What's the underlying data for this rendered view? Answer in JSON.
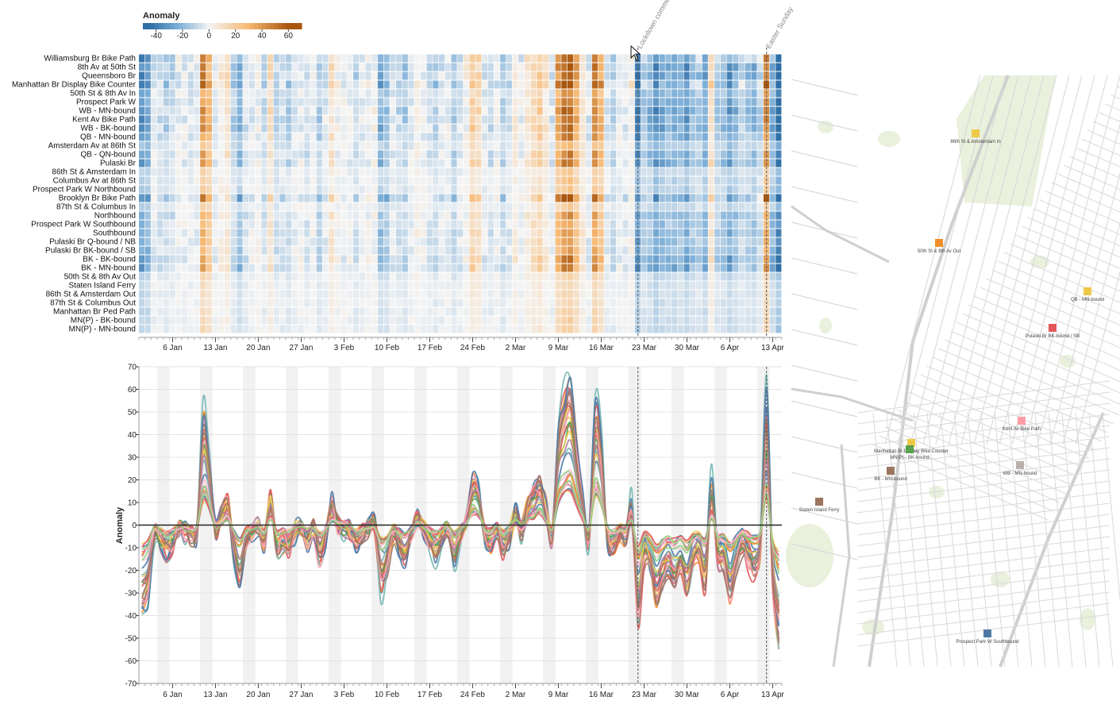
{
  "legend": {
    "title": "Anomaly",
    "ticks": [
      "-40",
      "-20",
      "0",
      "20",
      "40",
      "60"
    ],
    "tick_values": [
      -40,
      -20,
      0,
      20,
      40,
      60
    ],
    "domain": [
      -50,
      70
    ]
  },
  "colors": {
    "neg_strong": "#2f6ea6",
    "neg_mid": "#7fb0d8",
    "neutral": "#f4f4f4",
    "pos_mid": "#f7b871",
    "pos_strong": "#a9570f",
    "weekend_band": "#f1f1f1",
    "map_road": "#d9d9d9",
    "map_park": "#e9f0dc"
  },
  "events": [
    {
      "label": "Lockdown commences",
      "date_index": 81
    },
    {
      "label": "Easter Sunday",
      "date_index": 102
    }
  ],
  "chart_data": [
    {
      "type": "heatmap",
      "title": "",
      "legend_title": "Anomaly",
      "rows": [
        "Williamsburg Br Bike Path",
        "8th Av at 50th St",
        "Queensboro Br",
        "Manhattan Br Display Bike Counter",
        "50th St & 8th Av In",
        "Prospect Park W",
        "WB - MN-bound",
        "Kent Av Bike Path",
        "WB - BK-bound",
        "QB - MN-bound",
        "Amsterdam Av at 86th St",
        "QB - QN-bound",
        "Pulaski Br",
        "86th St & Amsterdam In",
        "Columbus Av at 86th St",
        "Prospect Park W Northbound",
        "Brooklyn Br Bike Path",
        "87th St & Columbus In",
        "Northbound",
        "Prospect Park W Southbound",
        "Southbound",
        "Pulaski Br Q-bound / NB",
        "Pulaski Br BK-bound / SB",
        "BK - BK-bound",
        "BK - MN-bound",
        "50th St & 8th Av Out",
        "Staten Island Ferry",
        "86th St & Amsterdam Out",
        "87th St & Columbus Out",
        "Manhattan Br Ped Path",
        "MN(P) - BK-bound",
        "MN(P) - MN-bound"
      ],
      "row_scale": [
        1.0,
        1.0,
        1.0,
        1.15,
        0.7,
        0.8,
        0.95,
        0.95,
        0.95,
        0.8,
        0.5,
        0.8,
        0.85,
        0.35,
        0.4,
        0.4,
        1.05,
        0.35,
        0.7,
        0.6,
        0.7,
        0.65,
        0.65,
        0.85,
        0.85,
        0.3,
        0.25,
        0.25,
        0.25,
        0.3,
        0.3,
        0.3
      ],
      "x_start": "2020-01-01",
      "x_end": "2020-04-15",
      "ticks": [
        "6 Jan",
        "13 Jan",
        "20 Jan",
        "27 Jan",
        "3 Feb",
        "10 Feb",
        "17 Feb",
        "24 Feb",
        "2 Mar",
        "9 Mar",
        "16 Mar",
        "23 Mar",
        "30 Mar",
        "6 Apr",
        "13 Apr"
      ],
      "tick_days": [
        5,
        12,
        19,
        26,
        33,
        40,
        47,
        54,
        61,
        68,
        75,
        82,
        89,
        96,
        103
      ],
      "base_profile": [
        [
          0,
          -35
        ],
        [
          1,
          -30
        ],
        [
          2,
          -5
        ],
        [
          3,
          -8
        ],
        [
          4,
          -12
        ],
        [
          5,
          -10
        ],
        [
          6,
          -2
        ],
        [
          7,
          -3
        ],
        [
          8,
          -5
        ],
        [
          9,
          -3
        ],
        [
          10,
          45
        ],
        [
          11,
          30
        ],
        [
          12,
          -2
        ],
        [
          13,
          5
        ],
        [
          14,
          10
        ],
        [
          15,
          -12
        ],
        [
          16,
          -25
        ],
        [
          17,
          -8
        ],
        [
          18,
          -3
        ],
        [
          19,
          -1
        ],
        [
          20,
          -8
        ],
        [
          21,
          12
        ],
        [
          22,
          -10
        ],
        [
          23,
          -8
        ],
        [
          24,
          -12
        ],
        [
          25,
          -3
        ],
        [
          26,
          -2
        ],
        [
          27,
          -8
        ],
        [
          28,
          -2
        ],
        [
          29,
          -15
        ],
        [
          30,
          -5
        ],
        [
          31,
          10
        ],
        [
          32,
          0
        ],
        [
          33,
          -2
        ],
        [
          34,
          -3
        ],
        [
          35,
          -10
        ],
        [
          36,
          -4
        ],
        [
          37,
          -1
        ],
        [
          38,
          0
        ],
        [
          39,
          -25
        ],
        [
          40,
          -20
        ],
        [
          41,
          -5
        ],
        [
          42,
          -10
        ],
        [
          43,
          -15
        ],
        [
          44,
          -5
        ],
        [
          45,
          3
        ],
        [
          46,
          -2
        ],
        [
          47,
          -8
        ],
        [
          48,
          -12
        ],
        [
          49,
          -5
        ],
        [
          50,
          -3
        ],
        [
          51,
          -15
        ],
        [
          52,
          -5
        ],
        [
          53,
          2
        ],
        [
          54,
          20
        ],
        [
          55,
          15
        ],
        [
          56,
          -5
        ],
        [
          57,
          -8
        ],
        [
          58,
          -3
        ],
        [
          59,
          -12
        ],
        [
          60,
          -5
        ],
        [
          61,
          5
        ],
        [
          62,
          -3
        ],
        [
          63,
          8
        ],
        [
          64,
          15
        ],
        [
          65,
          20
        ],
        [
          66,
          8
        ],
        [
          67,
          -5
        ],
        [
          68,
          40
        ],
        [
          69,
          55
        ],
        [
          70,
          60
        ],
        [
          71,
          35
        ],
        [
          72,
          10
        ],
        [
          73,
          -5
        ],
        [
          74,
          50
        ],
        [
          75,
          35
        ],
        [
          76,
          -5
        ],
        [
          77,
          -10
        ],
        [
          78,
          -3
        ],
        [
          79,
          -5
        ],
        [
          80,
          10
        ],
        [
          81,
          -35
        ],
        [
          82,
          -10
        ],
        [
          83,
          -15
        ],
        [
          84,
          -30
        ],
        [
          85,
          -20
        ],
        [
          86,
          -15
        ],
        [
          87,
          -20
        ],
        [
          88,
          -15
        ],
        [
          89,
          -25
        ],
        [
          90,
          -12
        ],
        [
          91,
          -8
        ],
        [
          92,
          -20
        ],
        [
          93,
          20
        ],
        [
          94,
          -10
        ],
        [
          95,
          -12
        ],
        [
          96,
          -25
        ],
        [
          97,
          -15
        ],
        [
          98,
          -5
        ],
        [
          99,
          -10
        ],
        [
          100,
          -15
        ],
        [
          101,
          -5
        ],
        [
          102,
          55
        ],
        [
          103,
          -20
        ],
        [
          104,
          -45
        ]
      ]
    },
    {
      "type": "line",
      "title": "",
      "xlabel": "",
      "ylabel": "Anomaly",
      "ylim": [
        -70,
        70
      ],
      "y_ticks": [
        "70",
        "60",
        "50",
        "40",
        "30",
        "20",
        "10",
        "0",
        "-10",
        "-20",
        "-30",
        "-40",
        "-50",
        "-60",
        "-70"
      ],
      "y_tick_values": [
        70,
        60,
        50,
        40,
        30,
        20,
        10,
        0,
        -10,
        -20,
        -30,
        -40,
        -50,
        -60,
        -70
      ],
      "x_ticks": [
        "6 Jan",
        "13 Jan",
        "20 Jan",
        "27 Jan",
        "3 Feb",
        "10 Feb",
        "17 Feb",
        "24 Feb",
        "2 Mar",
        "9 Mar",
        "16 Mar",
        "23 Mar",
        "30 Mar",
        "6 Apr",
        "13 Apr"
      ],
      "grid": true,
      "series_colors": [
        "#4e79a7",
        "#f28e2b",
        "#e15759",
        "#76b7b2",
        "#59a14f",
        "#edc948",
        "#b07aa1",
        "#ff9da7",
        "#9c755f",
        "#bab0ac",
        "#4e79a7",
        "#f1ce63",
        "#e15759",
        "#d37295",
        "#fabfd2",
        "#8cd17d"
      ]
    }
  ],
  "map": {
    "markers": [
      {
        "label": "86th St & Amsterdam In",
        "color": "#edc948"
      },
      {
        "label": "50th St & 8th Av Out",
        "color": "#f28e2b"
      },
      {
        "label": "QB - MN-bound",
        "color": "#edc948"
      },
      {
        "label": "Pulaski Br BK-bound / SB",
        "color": "#e15759"
      },
      {
        "label": "Kent Av Bike Path",
        "color": "#ff9da7"
      },
      {
        "label": "Manhattan Br Display Bike Counter",
        "color": "#edc948"
      },
      {
        "label": "MN(P) - BK-bound",
        "color": "#59a14f"
      },
      {
        "label": "WB - MN-bound",
        "color": "#bab0ac"
      },
      {
        "label": "BK - MN-bound",
        "color": "#9c755f"
      },
      {
        "label": "Staten Island Ferry",
        "color": "#9c755f"
      },
      {
        "label": "Prospect Park W Southbound",
        "color": "#4e79a7"
      }
    ]
  }
}
